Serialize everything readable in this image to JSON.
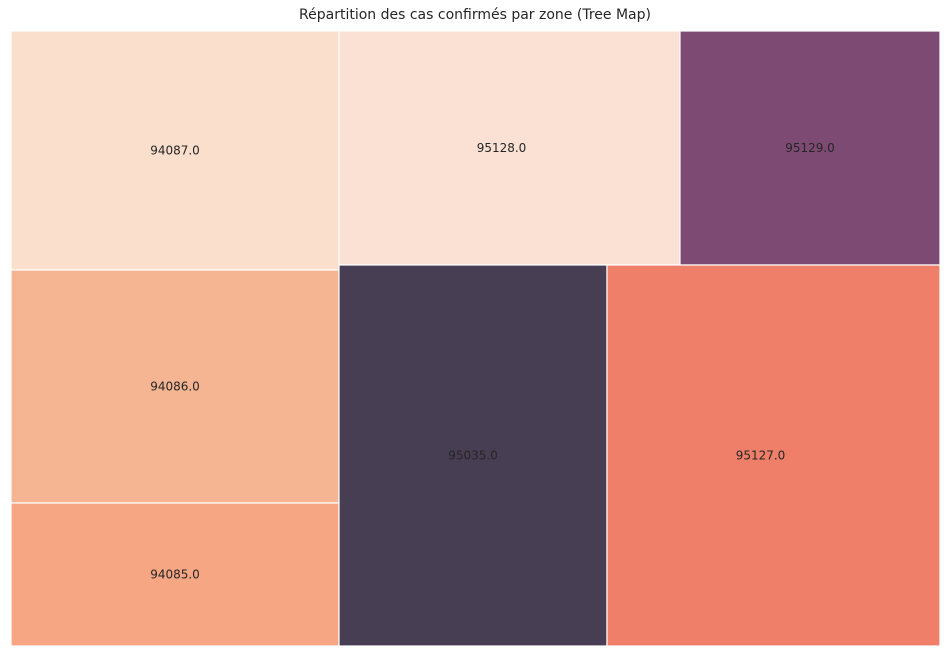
{
  "chart_data": {
    "type": "treemap",
    "title": "Répartition des cas confirmés par zone (Tree Map)",
    "background": "#ffffff",
    "axes_background": "#eaeaf2",
    "border_color": "#ffffff",
    "cells": [
      {
        "label": "94087.0",
        "color": "#f9dfcc",
        "order": 0
      },
      {
        "label": "94086.0",
        "color": "#f5b592",
        "order": 1
      },
      {
        "label": "94085.0",
        "color": "#f6a683",
        "order": 2
      },
      {
        "label": "95128.0",
        "color": "#fae1d4",
        "order": 3
      },
      {
        "label": "95129.0",
        "color": "#7d4a73",
        "order": 4
      },
      {
        "label": "95035.0",
        "color": "#473e53",
        "order": 5
      },
      {
        "label": "95127.0",
        "color": "#f07f69",
        "order": 6
      }
    ]
  }
}
